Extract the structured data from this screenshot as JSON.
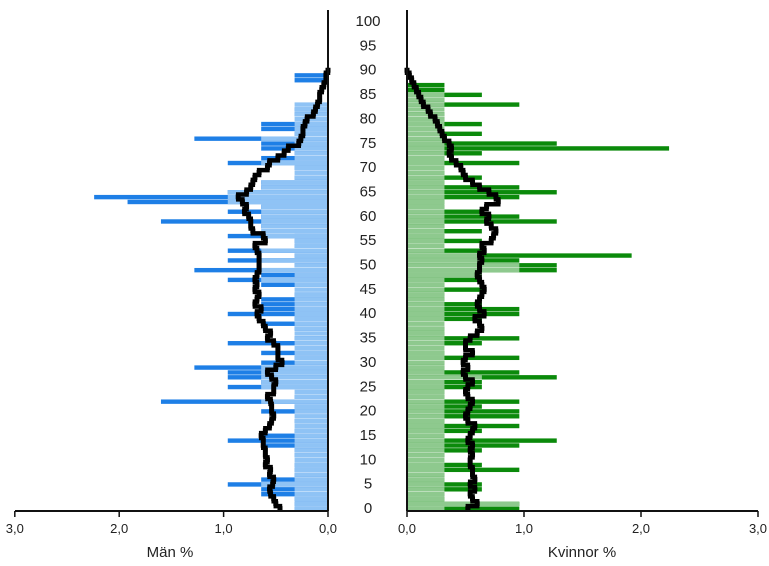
{
  "chart_data": [
    {
      "type": "bar",
      "orientation": "horizontal",
      "panel": "left",
      "xlabel": "Män %",
      "x_ticks": [
        "3,0",
        "2,0",
        "1,0",
        "0,0"
      ],
      "xlim": [
        3.0,
        0.0
      ],
      "ages": [
        0,
        1,
        2,
        3,
        4,
        5,
        6,
        7,
        8,
        9,
        10,
        11,
        12,
        13,
        14,
        15,
        16,
        17,
        18,
        19,
        20,
        21,
        22,
        23,
        24,
        25,
        26,
        27,
        28,
        29,
        30,
        31,
        32,
        33,
        34,
        35,
        36,
        37,
        38,
        39,
        40,
        41,
        42,
        43,
        44,
        45,
        46,
        47,
        48,
        49,
        50,
        51,
        52,
        53,
        54,
        55,
        56,
        57,
        58,
        59,
        60,
        61,
        62,
        63,
        64,
        65,
        66,
        67,
        68,
        69,
        70,
        71,
        72,
        73,
        74,
        75,
        76,
        77,
        78,
        79,
        80,
        81,
        82,
        83,
        84,
        85,
        86,
        87,
        88,
        89,
        90
      ],
      "series": [
        {
          "name": "",
          "color": "#1e7fe6",
          "values": [
            0.32,
            0.32,
            0.32,
            0.64,
            0.64,
            0.96,
            0.64,
            0.32,
            0.32,
            0.32,
            0.0,
            0.32,
            0.32,
            0.64,
            0.96,
            0.64,
            0.32,
            0.0,
            0.32,
            0.0,
            0.64,
            0.32,
            1.6,
            0.32,
            0.0,
            0.96,
            0.64,
            0.96,
            0.96,
            1.28,
            0.64,
            0.32,
            0.64,
            0.0,
            0.96,
            0.32,
            0.0,
            0.32,
            0.64,
            0.32,
            0.96,
            0.64,
            0.64,
            0.64,
            0.32,
            0.0,
            0.64,
            0.96,
            0.64,
            1.28,
            0.32,
            0.96,
            0.32,
            0.96,
            0.32,
            0.32,
            0.96,
            0.32,
            0.64,
            1.6,
            0.64,
            0.96,
            0.64,
            1.92,
            2.24,
            0.96,
            0.64,
            0.64,
            0.32,
            0.0,
            0.32,
            0.96,
            0.64,
            0.32,
            0.64,
            0.64,
            1.28,
            0.32,
            0.64,
            0.64,
            0.0,
            0.32,
            0.32,
            0.0,
            0.0,
            0.0,
            0.0,
            0.0,
            0.32,
            0.32,
            0.0
          ]
        },
        {
          "name": "",
          "color": "#8fc3f5",
          "values": [
            0.32,
            0.32,
            0.32,
            0.32,
            0.32,
            0.64,
            0.32,
            0.32,
            0.32,
            0.32,
            0.32,
            0.32,
            0.32,
            0.32,
            0.32,
            0.32,
            0.32,
            0.32,
            0.32,
            0.32,
            0.32,
            0.32,
            0.64,
            0.32,
            0.32,
            0.64,
            0.64,
            0.64,
            0.64,
            0.64,
            0.32,
            0.32,
            0.32,
            0.32,
            0.32,
            0.32,
            0.32,
            0.32,
            0.32,
            0.32,
            0.32,
            0.32,
            0.32,
            0.32,
            0.32,
            0.32,
            0.32,
            0.64,
            0.32,
            0.64,
            0.32,
            0.64,
            0.32,
            0.64,
            0.32,
            0.32,
            0.64,
            0.64,
            0.64,
            0.64,
            0.64,
            0.64,
            0.64,
            0.96,
            0.96,
            0.96,
            0.64,
            0.64,
            0.32,
            0.32,
            0.32,
            0.64,
            0.32,
            0.32,
            0.32,
            0.32,
            0.64,
            0.32,
            0.32,
            0.32,
            0.32,
            0.32,
            0.32,
            0.32,
            0.0,
            0.0,
            0.0,
            0.0,
            0.0,
            0.0,
            0.0
          ]
        },
        {
          "name": "",
          "color": "#000000",
          "values": [
            0.46,
            0.5,
            0.52,
            0.55,
            0.56,
            0.53,
            0.52,
            0.56,
            0.55,
            0.6,
            0.58,
            0.6,
            0.6,
            0.62,
            0.62,
            0.64,
            0.6,
            0.56,
            0.54,
            0.52,
            0.54,
            0.54,
            0.55,
            0.58,
            0.52,
            0.52,
            0.5,
            0.54,
            0.58,
            0.5,
            0.44,
            0.48,
            0.48,
            0.48,
            0.52,
            0.58,
            0.55,
            0.6,
            0.62,
            0.66,
            0.68,
            0.64,
            0.7,
            0.68,
            0.66,
            0.7,
            0.68,
            0.7,
            0.68,
            0.66,
            0.66,
            0.66,
            0.66,
            0.68,
            0.7,
            0.6,
            0.62,
            0.72,
            0.74,
            0.74,
            0.76,
            0.8,
            0.78,
            0.82,
            0.86,
            0.78,
            0.74,
            0.72,
            0.7,
            0.66,
            0.58,
            0.56,
            0.48,
            0.42,
            0.38,
            0.28,
            0.26,
            0.24,
            0.24,
            0.22,
            0.2,
            0.14,
            0.12,
            0.1,
            0.08,
            0.08,
            0.06,
            0.04,
            0.02,
            0.02,
            0.0
          ]
        }
      ]
    },
    {
      "type": "bar",
      "orientation": "horizontal",
      "panel": "right",
      "xlabel": "Kvinnor %",
      "x_ticks": [
        "0,0",
        "1,0",
        "2,0",
        "3,0"
      ],
      "xlim": [
        0.0,
        3.0
      ],
      "ages": [
        0,
        1,
        2,
        3,
        4,
        5,
        6,
        7,
        8,
        9,
        10,
        11,
        12,
        13,
        14,
        15,
        16,
        17,
        18,
        19,
        20,
        21,
        22,
        23,
        24,
        25,
        26,
        27,
        28,
        29,
        30,
        31,
        32,
        33,
        34,
        35,
        36,
        37,
        38,
        39,
        40,
        41,
        42,
        43,
        44,
        45,
        46,
        47,
        48,
        49,
        50,
        51,
        52,
        53,
        54,
        55,
        56,
        57,
        58,
        59,
        60,
        61,
        62,
        63,
        64,
        65,
        66,
        67,
        68,
        69,
        70,
        71,
        72,
        73,
        74,
        75,
        76,
        77,
        78,
        79,
        80,
        81,
        82,
        83,
        84,
        85,
        86,
        87,
        88,
        89,
        90
      ],
      "series": [
        {
          "name": "",
          "color": "#0b8a0b",
          "values": [
            0.96,
            0.96,
            0.32,
            0.32,
            0.64,
            0.64,
            0.32,
            0.32,
            0.96,
            0.64,
            0.0,
            0.32,
            0.64,
            0.96,
            1.28,
            0.32,
            0.64,
            0.96,
            0.32,
            0.96,
            0.96,
            0.64,
            0.96,
            0.32,
            0.32,
            0.64,
            0.64,
            1.28,
            0.96,
            0.32,
            0.32,
            0.96,
            0.32,
            0.0,
            0.64,
            0.96,
            0.32,
            0.32,
            0.0,
            0.64,
            0.96,
            0.96,
            0.64,
            0.32,
            0.32,
            0.64,
            0.32,
            0.64,
            0.64,
            1.28,
            1.28,
            0.96,
            1.92,
            0.64,
            0.0,
            0.64,
            0.32,
            0.64,
            0.32,
            1.28,
            0.96,
            0.64,
            0.32,
            0.32,
            0.96,
            1.28,
            0.96,
            0.32,
            0.64,
            0.32,
            0.0,
            0.96,
            0.32,
            0.64,
            2.24,
            1.28,
            0.32,
            0.64,
            0.0,
            0.64,
            0.32,
            0.32,
            0.0,
            0.96,
            0.32,
            0.64,
            0.32,
            0.32,
            0.0,
            0.0,
            0.0
          ]
        },
        {
          "name": "",
          "color": "#8ec98e",
          "values": [
            0.32,
            0.96,
            0.32,
            0.32,
            0.32,
            0.32,
            0.32,
            0.32,
            0.32,
            0.32,
            0.32,
            0.32,
            0.32,
            0.32,
            0.32,
            0.32,
            0.32,
            0.32,
            0.32,
            0.32,
            0.32,
            0.32,
            0.32,
            0.32,
            0.32,
            0.32,
            0.32,
            0.64,
            0.32,
            0.32,
            0.32,
            0.32,
            0.32,
            0.32,
            0.32,
            0.32,
            0.32,
            0.32,
            0.32,
            0.32,
            0.32,
            0.32,
            0.32,
            0.32,
            0.32,
            0.32,
            0.32,
            0.32,
            0.64,
            0.96,
            0.96,
            0.64,
            0.64,
            0.32,
            0.32,
            0.32,
            0.32,
            0.32,
            0.32,
            0.32,
            0.32,
            0.32,
            0.32,
            0.32,
            0.32,
            0.32,
            0.32,
            0.32,
            0.32,
            0.32,
            0.32,
            0.32,
            0.32,
            0.32,
            0.32,
            0.32,
            0.32,
            0.32,
            0.32,
            0.32,
            0.32,
            0.32,
            0.32,
            0.32,
            0.32,
            0.32,
            0.0,
            0.0,
            0.0,
            0.0,
            0.0
          ]
        },
        {
          "name": "",
          "color": "#000000",
          "values": [
            0.52,
            0.6,
            0.56,
            0.54,
            0.58,
            0.54,
            0.58,
            0.56,
            0.56,
            0.54,
            0.54,
            0.56,
            0.54,
            0.56,
            0.52,
            0.54,
            0.56,
            0.58,
            0.52,
            0.5,
            0.52,
            0.54,
            0.56,
            0.52,
            0.5,
            0.52,
            0.56,
            0.5,
            0.48,
            0.52,
            0.48,
            0.5,
            0.56,
            0.5,
            0.5,
            0.54,
            0.6,
            0.64,
            0.62,
            0.58,
            0.66,
            0.62,
            0.6,
            0.62,
            0.64,
            0.66,
            0.64,
            0.62,
            0.6,
            0.62,
            0.62,
            0.64,
            0.62,
            0.66,
            0.64,
            0.72,
            0.74,
            0.76,
            0.72,
            0.68,
            0.7,
            0.64,
            0.68,
            0.78,
            0.76,
            0.7,
            0.62,
            0.56,
            0.5,
            0.48,
            0.46,
            0.42,
            0.38,
            0.36,
            0.38,
            0.36,
            0.32,
            0.3,
            0.28,
            0.26,
            0.24,
            0.2,
            0.18,
            0.14,
            0.12,
            0.1,
            0.08,
            0.06,
            0.04,
            0.02,
            0.0
          ]
        }
      ]
    }
  ],
  "age_axis": {
    "labels": [
      "0",
      "5",
      "10",
      "15",
      "20",
      "25",
      "30",
      "35",
      "40",
      "45",
      "50",
      "55",
      "60",
      "65",
      "70",
      "75",
      "80",
      "85",
      "90",
      "95",
      "100"
    ]
  }
}
